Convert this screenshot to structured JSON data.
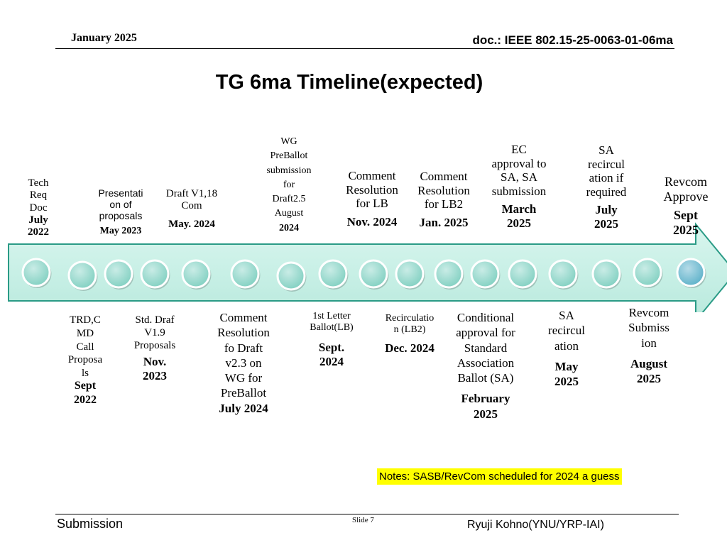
{
  "header": {
    "date": "January 2025",
    "doc": "doc.: IEEE 802.15-25-0063-01-06ma"
  },
  "title": "TG 6ma Timeline(expected)",
  "top_labels": [
    {
      "text": "Tech\nReq\nDoc",
      "date": "July\n2022"
    },
    {
      "text": "Presentati\non of\nproposals",
      "date": "May 2023"
    },
    {
      "text": "Draft V1,18\nCom",
      "date": "May. 2024"
    },
    {
      "text": "WG\nPreBallot\nsubmission\nfor\nDraft2.5\nAugust",
      "date": "2024"
    },
    {
      "text": "Comment\nResolution\nfor LB",
      "date": "Nov. 2024"
    },
    {
      "text": "Comment\nResolution\nfor LB2",
      "date": "Jan. 2025"
    },
    {
      "text": "EC\napproval to\nSA, SA\nsubmission",
      "date": "March\n2025"
    },
    {
      "text": "SA\nrecircul\nation if\nrequired",
      "date": "July\n2025"
    },
    {
      "text": "Revcom\nApprove",
      "date": "Sept\n2025"
    }
  ],
  "bottom_labels": [
    {
      "text": "TRD,C\nMD\nCall\nProposa\nls",
      "date": "Sept\n2022"
    },
    {
      "text": "Std. Draf\nV1.9\nProposals",
      "date": "Nov.\n2023"
    },
    {
      "text": "Comment\nResolution\nfo Draft\nv2.3 on\nWG for\nPreBallot",
      "date": "July  2024"
    },
    {
      "text": "1st Letter\nBallot(LB)",
      "date": "Sept.\n2024"
    },
    {
      "text": "Recirculatio\nn (LB2)",
      "date": "Dec. 2024"
    },
    {
      "text": "Conditional\napproval for\nStandard\nAssociation\nBallot (SA)",
      "date": "February\n2025"
    },
    {
      "text": "SA\nrecircul\nation",
      "date": "May\n2025"
    },
    {
      "text": "Revcom\nSubmiss\nion",
      "date": "August\n2025"
    }
  ],
  "notes": "Notes:  SASB/RevCom scheduled for 2024 a guess",
  "footer": {
    "submission": "Submission",
    "slide": "Slide 7",
    "author": "Ryuji Kohno(YNU/YRP-IAI)"
  },
  "colors": {
    "arrow_fill": "#c8f0e6",
    "arrow_stroke": "#2a9b86",
    "milestone_fill": "#7fcfc0",
    "milestone_last": "#5ab0c8"
  }
}
